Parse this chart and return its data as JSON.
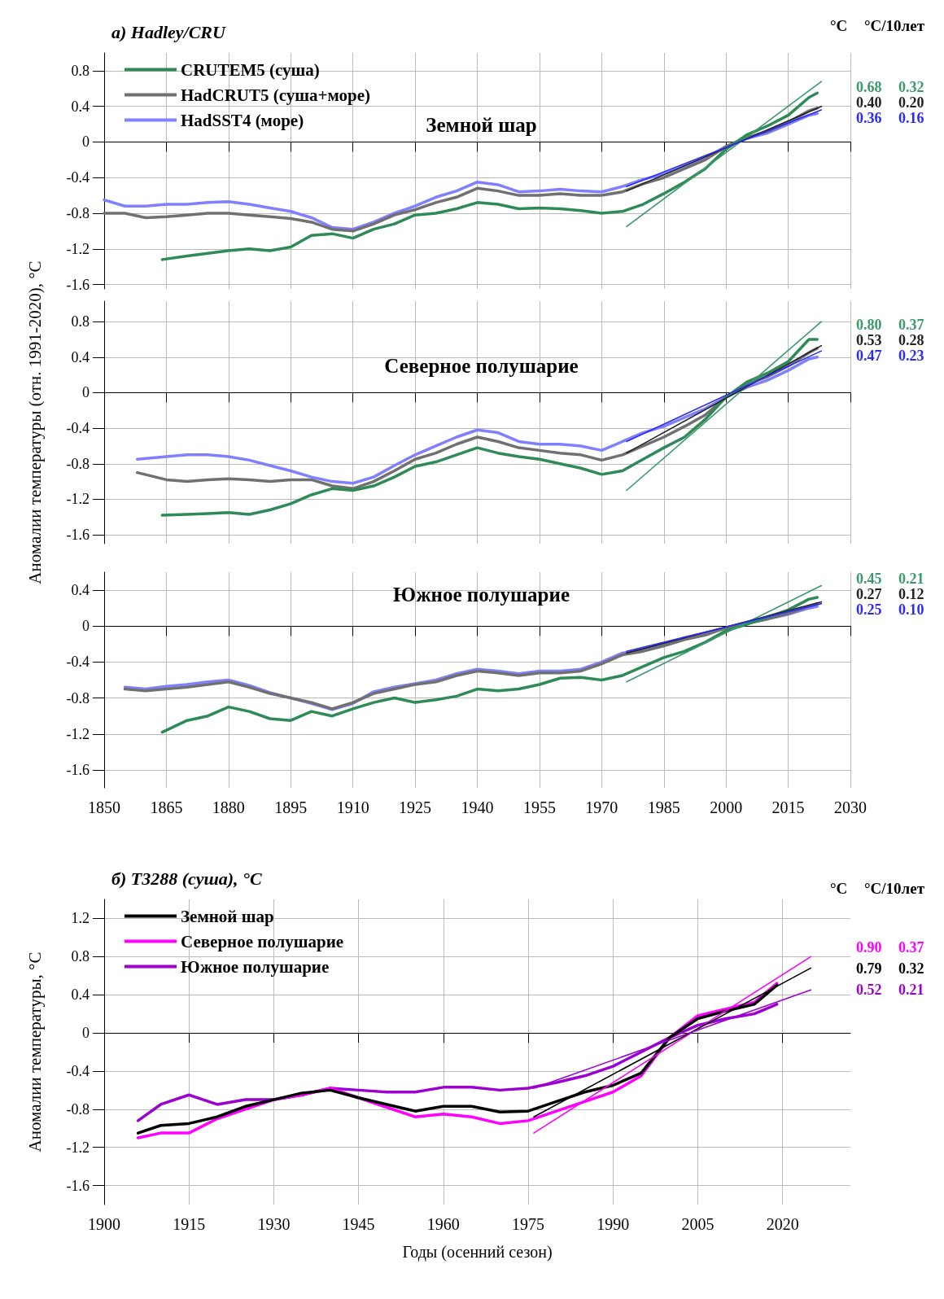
{
  "chart_data": [
    {
      "type": "line",
      "title": "a) Hadley/CRU",
      "subtitle": "Земной шар",
      "xlim": [
        1850,
        2030
      ],
      "xticks": [
        1850,
        1865,
        1880,
        1895,
        1910,
        1925,
        1940,
        1955,
        1970,
        1985,
        2000,
        2015,
        2030
      ],
      "ylim": [
        -1.65,
        1.0
      ],
      "yticks": [
        -1.6,
        -1.2,
        -0.8,
        -0.4,
        0.0,
        0.4,
        0.8
      ],
      "tick_labels": "y",
      "grid": true,
      "legend": "top left",
      "marker": "none",
      "line_style": "solid",
      "annotations": [
        "°C",
        "°C/10лет",
        "0.68",
        "0.32",
        "0.40",
        "0.20",
        "0.36",
        "0.16"
      ],
      "series": [
        {
          "name": "CRUTEM5 (суша)",
          "color": "#2e8b57",
          "x": [
            1864,
            1870,
            1875,
            1880,
            1885,
            1890,
            1895,
            1900,
            1905,
            1910,
            1915,
            1920,
            1925,
            1930,
            1935,
            1940,
            1945,
            1950,
            1955,
            1960,
            1965,
            1970,
            1975,
            1980,
            1985,
            1990,
            1995,
            2000,
            2005,
            2010,
            2015,
            2020,
            2022
          ],
          "values": [
            -1.32,
            -1.28,
            -1.25,
            -1.22,
            -1.2,
            -1.22,
            -1.18,
            -1.05,
            -1.03,
            -1.08,
            -0.98,
            -0.92,
            -0.82,
            -0.8,
            -0.75,
            -0.68,
            -0.7,
            -0.75,
            -0.74,
            -0.75,
            -0.77,
            -0.8,
            -0.78,
            -0.7,
            -0.58,
            -0.45,
            -0.3,
            -0.08,
            0.08,
            0.18,
            0.3,
            0.5,
            0.55
          ]
        },
        {
          "name": "HadCRUT5 (суша+море)",
          "color": "#707070",
          "x": [
            1850,
            1855,
            1860,
            1865,
            1870,
            1875,
            1880,
            1885,
            1890,
            1895,
            1900,
            1905,
            1910,
            1915,
            1920,
            1925,
            1930,
            1935,
            1940,
            1945,
            1950,
            1955,
            1960,
            1965,
            1970,
            1975,
            1980,
            1985,
            1990,
            1995,
            2000,
            2005,
            2010,
            2015,
            2020,
            2022
          ],
          "values": [
            -0.8,
            -0.8,
            -0.85,
            -0.84,
            -0.82,
            -0.8,
            -0.8,
            -0.82,
            -0.84,
            -0.86,
            -0.9,
            -0.98,
            -1.0,
            -0.92,
            -0.82,
            -0.76,
            -0.68,
            -0.62,
            -0.52,
            -0.55,
            -0.6,
            -0.6,
            -0.58,
            -0.6,
            -0.6,
            -0.56,
            -0.47,
            -0.4,
            -0.3,
            -0.2,
            -0.05,
            0.05,
            0.12,
            0.22,
            0.35,
            0.38
          ]
        },
        {
          "name": "HadSST4 (море)",
          "color": "#8080ff",
          "x": [
            1850,
            1855,
            1860,
            1865,
            1870,
            1875,
            1880,
            1885,
            1890,
            1895,
            1900,
            1905,
            1910,
            1915,
            1920,
            1925,
            1930,
            1935,
            1940,
            1945,
            1950,
            1955,
            1960,
            1965,
            1970,
            1975,
            1980,
            1985,
            1990,
            1995,
            2000,
            2005,
            2010,
            2015,
            2020,
            2022
          ],
          "values": [
            -0.65,
            -0.72,
            -0.72,
            -0.7,
            -0.7,
            -0.68,
            -0.67,
            -0.7,
            -0.74,
            -0.78,
            -0.85,
            -0.96,
            -0.98,
            -0.9,
            -0.8,
            -0.72,
            -0.62,
            -0.55,
            -0.45,
            -0.48,
            -0.56,
            -0.55,
            -0.53,
            -0.55,
            -0.56,
            -0.5,
            -0.42,
            -0.36,
            -0.27,
            -0.18,
            -0.05,
            0.04,
            0.1,
            0.2,
            0.3,
            0.32
          ]
        },
        {
          "color": "#3a9a6a",
          "x": [
            1976,
            2023
          ],
          "values": [
            -0.95,
            0.68
          ]
        },
        {
          "color": "#222222",
          "x": [
            1976,
            2023
          ],
          "values": [
            -0.55,
            0.4
          ]
        },
        {
          "color": "#2a2aff",
          "x": [
            1976,
            2023
          ],
          "values": [
            -0.5,
            0.36
          ]
        }
      ]
    },
    {
      "type": "line",
      "subtitle": "Северное полушарие",
      "ylabel": "Аномалии температуры (отн. 1991-2020), °C",
      "xlim": [
        1850,
        2030
      ],
      "xticks": [
        1850,
        1865,
        1880,
        1895,
        1910,
        1925,
        1940,
        1955,
        1970,
        1985,
        2000,
        2015,
        2030
      ],
      "ylim": [
        -1.7,
        1.03
      ],
      "yticks": [
        -1.6,
        -1.2,
        -0.8,
        -0.4,
        0.0,
        0.4,
        0.8
      ],
      "tick_labels": "y",
      "grid": true,
      "marker": "none",
      "line_style": "solid",
      "annotations": [
        "0.80",
        "0.37",
        "0.53",
        "0.28",
        "0.47",
        "0.23"
      ],
      "series": [
        {
          "color": "#2e8b57",
          "x": [
            1864,
            1870,
            1875,
            1880,
            1885,
            1890,
            1895,
            1900,
            1905,
            1910,
            1915,
            1920,
            1925,
            1930,
            1935,
            1940,
            1945,
            1950,
            1955,
            1960,
            1965,
            1970,
            1975,
            1980,
            1985,
            1990,
            1995,
            2000,
            2005,
            2010,
            2015,
            2020,
            2022
          ],
          "values": [
            -1.38,
            -1.37,
            -1.36,
            -1.35,
            -1.37,
            -1.32,
            -1.25,
            -1.15,
            -1.08,
            -1.1,
            -1.05,
            -0.95,
            -0.83,
            -0.78,
            -0.7,
            -0.62,
            -0.68,
            -0.72,
            -0.75,
            -0.8,
            -0.85,
            -0.92,
            -0.88,
            -0.75,
            -0.62,
            -0.5,
            -0.3,
            -0.05,
            0.12,
            0.22,
            0.35,
            0.6,
            0.6
          ]
        },
        {
          "color": "#707070",
          "x": [
            1858,
            1865,
            1870,
            1875,
            1880,
            1885,
            1890,
            1895,
            1900,
            1905,
            1910,
            1915,
            1920,
            1925,
            1930,
            1935,
            1940,
            1945,
            1950,
            1955,
            1960,
            1965,
            1970,
            1975,
            1980,
            1985,
            1990,
            1995,
            2000,
            2005,
            2010,
            2015,
            2020,
            2022
          ],
          "values": [
            -0.9,
            -0.98,
            -1.0,
            -0.98,
            -0.97,
            -0.98,
            -1.0,
            -0.98,
            -0.98,
            -1.05,
            -1.08,
            -1.0,
            -0.88,
            -0.75,
            -0.68,
            -0.58,
            -0.5,
            -0.55,
            -0.62,
            -0.65,
            -0.68,
            -0.7,
            -0.76,
            -0.7,
            -0.6,
            -0.5,
            -0.38,
            -0.25,
            -0.05,
            0.1,
            0.18,
            0.3,
            0.45,
            0.5
          ]
        },
        {
          "color": "#8080ff",
          "x": [
            1858,
            1865,
            1870,
            1875,
            1880,
            1885,
            1890,
            1895,
            1900,
            1905,
            1910,
            1915,
            1920,
            1925,
            1930,
            1935,
            1940,
            1945,
            1950,
            1955,
            1960,
            1965,
            1970,
            1975,
            1980,
            1985,
            1990,
            1995,
            2000,
            2005,
            2010,
            2015,
            2020,
            2022
          ],
          "values": [
            -0.75,
            -0.72,
            -0.7,
            -0.7,
            -0.72,
            -0.76,
            -0.82,
            -0.88,
            -0.95,
            -1.0,
            -1.02,
            -0.95,
            -0.82,
            -0.7,
            -0.6,
            -0.5,
            -0.42,
            -0.45,
            -0.55,
            -0.58,
            -0.58,
            -0.6,
            -0.65,
            -0.55,
            -0.45,
            -0.38,
            -0.28,
            -0.18,
            -0.05,
            0.06,
            0.14,
            0.25,
            0.38,
            0.4
          ]
        },
        {
          "color": "#3a9a6a",
          "x": [
            1976,
            2023
          ],
          "values": [
            -1.1,
            0.8
          ]
        },
        {
          "color": "#222222",
          "x": [
            1976,
            2023
          ],
          "values": [
            -0.68,
            0.53
          ]
        },
        {
          "color": "#2a2aff",
          "x": [
            1976,
            2023
          ],
          "values": [
            -0.55,
            0.47
          ]
        }
      ]
    },
    {
      "type": "line",
      "subtitle": "Южное полушарие",
      "xlim": [
        1850,
        2030
      ],
      "xticks": [
        1850,
        1865,
        1880,
        1895,
        1910,
        1925,
        1940,
        1955,
        1970,
        1985,
        2000,
        2015,
        2030
      ],
      "ylim": [
        -1.8,
        0.6
      ],
      "yticks": [
        -1.6,
        -1.2,
        -0.8,
        -0.4,
        0.0,
        0.4
      ],
      "grid": true,
      "marker": "none",
      "line_style": "solid",
      "annotations": [
        "0.45",
        "0.21",
        "0.27",
        "0.12",
        "0.25",
        "0.10"
      ],
      "series": [
        {
          "color": "#2e8b57",
          "x": [
            1864,
            1870,
            1875,
            1880,
            1885,
            1890,
            1895,
            1900,
            1905,
            1910,
            1915,
            1920,
            1925,
            1930,
            1935,
            1940,
            1945,
            1950,
            1955,
            1960,
            1965,
            1970,
            1975,
            1980,
            1985,
            1990,
            1995,
            2000,
            2005,
            2010,
            2015,
            2020,
            2022
          ],
          "values": [
            -1.18,
            -1.05,
            -1.0,
            -0.9,
            -0.95,
            -1.03,
            -1.05,
            -0.95,
            -1.0,
            -0.92,
            -0.85,
            -0.8,
            -0.85,
            -0.82,
            -0.78,
            -0.7,
            -0.72,
            -0.7,
            -0.65,
            -0.58,
            -0.57,
            -0.6,
            -0.55,
            -0.45,
            -0.35,
            -0.28,
            -0.18,
            -0.05,
            0.02,
            0.1,
            0.18,
            0.3,
            0.32
          ]
        },
        {
          "color": "#707070",
          "x": [
            1855,
            1860,
            1865,
            1870,
            1875,
            1880,
            1885,
            1890,
            1895,
            1900,
            1905,
            1910,
            1915,
            1920,
            1925,
            1930,
            1935,
            1940,
            1945,
            1950,
            1955,
            1960,
            1965,
            1970,
            1975,
            1980,
            1985,
            1990,
            1995,
            2000,
            2005,
            2010,
            2015,
            2020,
            2022
          ],
          "values": [
            -0.7,
            -0.72,
            -0.7,
            -0.68,
            -0.65,
            -0.62,
            -0.68,
            -0.75,
            -0.8,
            -0.85,
            -0.92,
            -0.85,
            -0.75,
            -0.7,
            -0.65,
            -0.62,
            -0.55,
            -0.5,
            -0.52,
            -0.55,
            -0.52,
            -0.52,
            -0.5,
            -0.42,
            -0.32,
            -0.28,
            -0.22,
            -0.15,
            -0.1,
            -0.02,
            0.03,
            0.08,
            0.14,
            0.22,
            0.25
          ]
        },
        {
          "color": "#8080ff",
          "x": [
            1855,
            1860,
            1865,
            1870,
            1875,
            1880,
            1885,
            1890,
            1895,
            1900,
            1905,
            1910,
            1915,
            1920,
            1925,
            1930,
            1935,
            1940,
            1945,
            1950,
            1955,
            1960,
            1965,
            1970,
            1975,
            1980,
            1985,
            1990,
            1995,
            2000,
            2005,
            2010,
            2015,
            2020,
            2022
          ],
          "values": [
            -0.68,
            -0.7,
            -0.67,
            -0.65,
            -0.62,
            -0.6,
            -0.66,
            -0.74,
            -0.8,
            -0.86,
            -0.93,
            -0.86,
            -0.73,
            -0.68,
            -0.64,
            -0.6,
            -0.53,
            -0.48,
            -0.5,
            -0.53,
            -0.5,
            -0.5,
            -0.48,
            -0.4,
            -0.3,
            -0.26,
            -0.2,
            -0.13,
            -0.08,
            -0.02,
            0.03,
            0.08,
            0.13,
            0.2,
            0.22
          ]
        },
        {
          "color": "#3a9a6a",
          "x": [
            1976,
            2023
          ],
          "values": [
            -0.62,
            0.45
          ]
        },
        {
          "color": "#222222",
          "x": [
            1976,
            2023
          ],
          "values": [
            -0.3,
            0.27
          ]
        },
        {
          "color": "#2a2aff",
          "x": [
            1976,
            2023
          ],
          "values": [
            -0.28,
            0.25
          ]
        }
      ]
    },
    {
      "type": "line",
      "title": "б) T3288 (суша), °C",
      "ylabel": "Аномалии температуры, °C",
      "xlabel": "Годы (осенний сезон)",
      "xlim": [
        1900,
        2032
      ],
      "xticks": [
        1900,
        1915,
        1930,
        1945,
        1960,
        1975,
        1990,
        2005,
        2020
      ],
      "ylim": [
        -1.8,
        1.4
      ],
      "yticks": [
        -1.6,
        -1.2,
        -0.8,
        -0.4,
        0.0,
        0.4,
        0.8,
        1.2
      ],
      "grid": true,
      "legend": "top left",
      "marker": "none",
      "line_style": "solid",
      "annotations": [
        "°C",
        "°C/10лет",
        "0.90",
        "0.37",
        "0.79",
        "0.32",
        "0.52",
        "0.21"
      ],
      "series": [
        {
          "name": "Земной шар",
          "color": "#000000",
          "x": [
            1906,
            1910,
            1915,
            1920,
            1925,
            1930,
            1935,
            1940,
            1945,
            1950,
            1955,
            1960,
            1965,
            1970,
            1975,
            1980,
            1985,
            1990,
            1995,
            2000,
            2005,
            2010,
            2015,
            2019
          ],
          "values": [
            -1.05,
            -0.97,
            -0.95,
            -0.88,
            -0.77,
            -0.7,
            -0.63,
            -0.6,
            -0.68,
            -0.75,
            -0.82,
            -0.77,
            -0.77,
            -0.83,
            -0.82,
            -0.72,
            -0.62,
            -0.55,
            -0.42,
            -0.05,
            0.15,
            0.23,
            0.3,
            0.5
          ]
        },
        {
          "name": "Северное полушарие",
          "color": "#ff00ff",
          "x": [
            1906,
            1910,
            1915,
            1920,
            1925,
            1930,
            1935,
            1940,
            1945,
            1950,
            1955,
            1960,
            1965,
            1970,
            1975,
            1980,
            1985,
            1990,
            1995,
            2000,
            2005,
            2010,
            2015,
            2019
          ],
          "values": [
            -1.1,
            -1.05,
            -1.05,
            -0.9,
            -0.8,
            -0.7,
            -0.65,
            -0.58,
            -0.68,
            -0.78,
            -0.88,
            -0.85,
            -0.88,
            -0.95,
            -0.92,
            -0.82,
            -0.72,
            -0.62,
            -0.45,
            -0.05,
            0.18,
            0.25,
            0.32,
            0.52
          ]
        },
        {
          "name": "Южное полушарие",
          "color": "#9b00d0",
          "x": [
            1906,
            1910,
            1915,
            1920,
            1925,
            1930,
            1935,
            1940,
            1945,
            1950,
            1955,
            1960,
            1965,
            1970,
            1975,
            1980,
            1985,
            1990,
            1995,
            2000,
            2005,
            2010,
            2015,
            2019
          ],
          "values": [
            -0.92,
            -0.75,
            -0.65,
            -0.75,
            -0.7,
            -0.7,
            -0.65,
            -0.58,
            -0.6,
            -0.62,
            -0.62,
            -0.57,
            -0.57,
            -0.6,
            -0.58,
            -0.52,
            -0.45,
            -0.35,
            -0.2,
            -0.05,
            0.08,
            0.15,
            0.2,
            0.3
          ]
        },
        {
          "color": "#ff00ff",
          "x": [
            1976,
            2025
          ],
          "values": [
            -1.05,
            0.8
          ]
        },
        {
          "color": "#000000",
          "x": [
            1976,
            2025
          ],
          "values": [
            -0.88,
            0.68
          ]
        },
        {
          "color": "#9b00d0",
          "x": [
            1976,
            2025
          ],
          "values": [
            -0.58,
            0.45
          ]
        }
      ]
    }
  ]
}
